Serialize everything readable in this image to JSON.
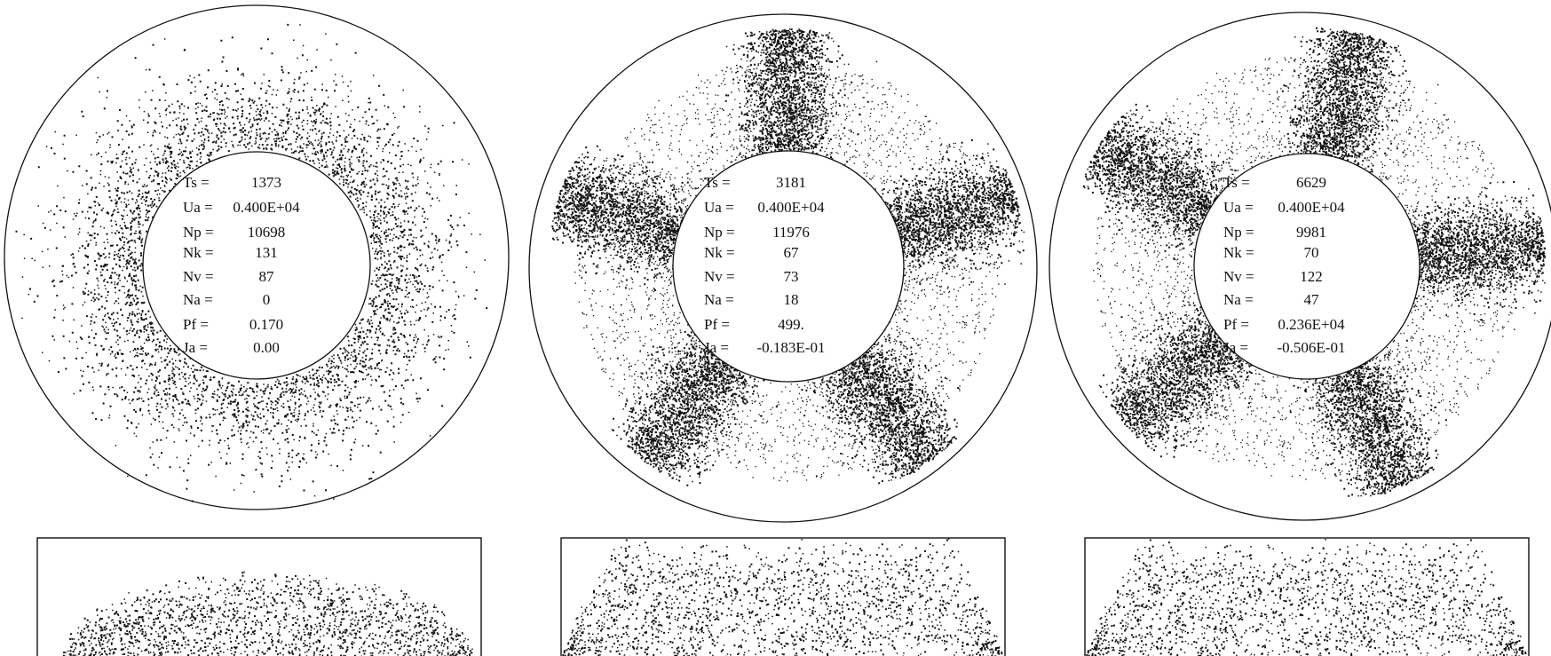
{
  "colors": {
    "ink": "#111111",
    "background": "#ffffff"
  },
  "panels": [
    {
      "shape": "ring",
      "lobes": 0,
      "params": [
        {
          "label": "Ts =",
          "value": "1373"
        },
        {
          "label": "Ua =",
          "value": "0.400E+04"
        },
        {
          "label": "Np =",
          "value": "10698"
        },
        {
          "label": "Nk =",
          "value": "131"
        },
        {
          "label": "Nv =",
          "value": "87"
        },
        {
          "label": "Na =",
          "value": "0"
        },
        {
          "label": "Pf =",
          "value": "0.170"
        },
        {
          "label": "Ja =",
          "value": "0.00"
        }
      ]
    },
    {
      "shape": "star",
      "lobes": 5,
      "params": [
        {
          "label": "Ts =",
          "value": "3181"
        },
        {
          "label": "Ua =",
          "value": "0.400E+04"
        },
        {
          "label": "Np =",
          "value": "11976"
        },
        {
          "label": "Nk =",
          "value": "67"
        },
        {
          "label": "Nv =",
          "value": "73"
        },
        {
          "label": "Na =",
          "value": "18"
        },
        {
          "label": "Pf =",
          "value": "499."
        },
        {
          "label": "Ja =",
          "value": "-0.183E-01"
        }
      ]
    },
    {
      "shape": "star",
      "lobes": 5,
      "params": [
        {
          "label": "Ts =",
          "value": "6629"
        },
        {
          "label": "Ua =",
          "value": "0.400E+04"
        },
        {
          "label": "Np =",
          "value": "9981"
        },
        {
          "label": "Nk =",
          "value": "70"
        },
        {
          "label": "Nv =",
          "value": "122"
        },
        {
          "label": "Na =",
          "value": "47"
        },
        {
          "label": "Pf =",
          "value": "0.236E+04"
        },
        {
          "label": "Ja =",
          "value": "-0.506E-01"
        }
      ]
    }
  ]
}
